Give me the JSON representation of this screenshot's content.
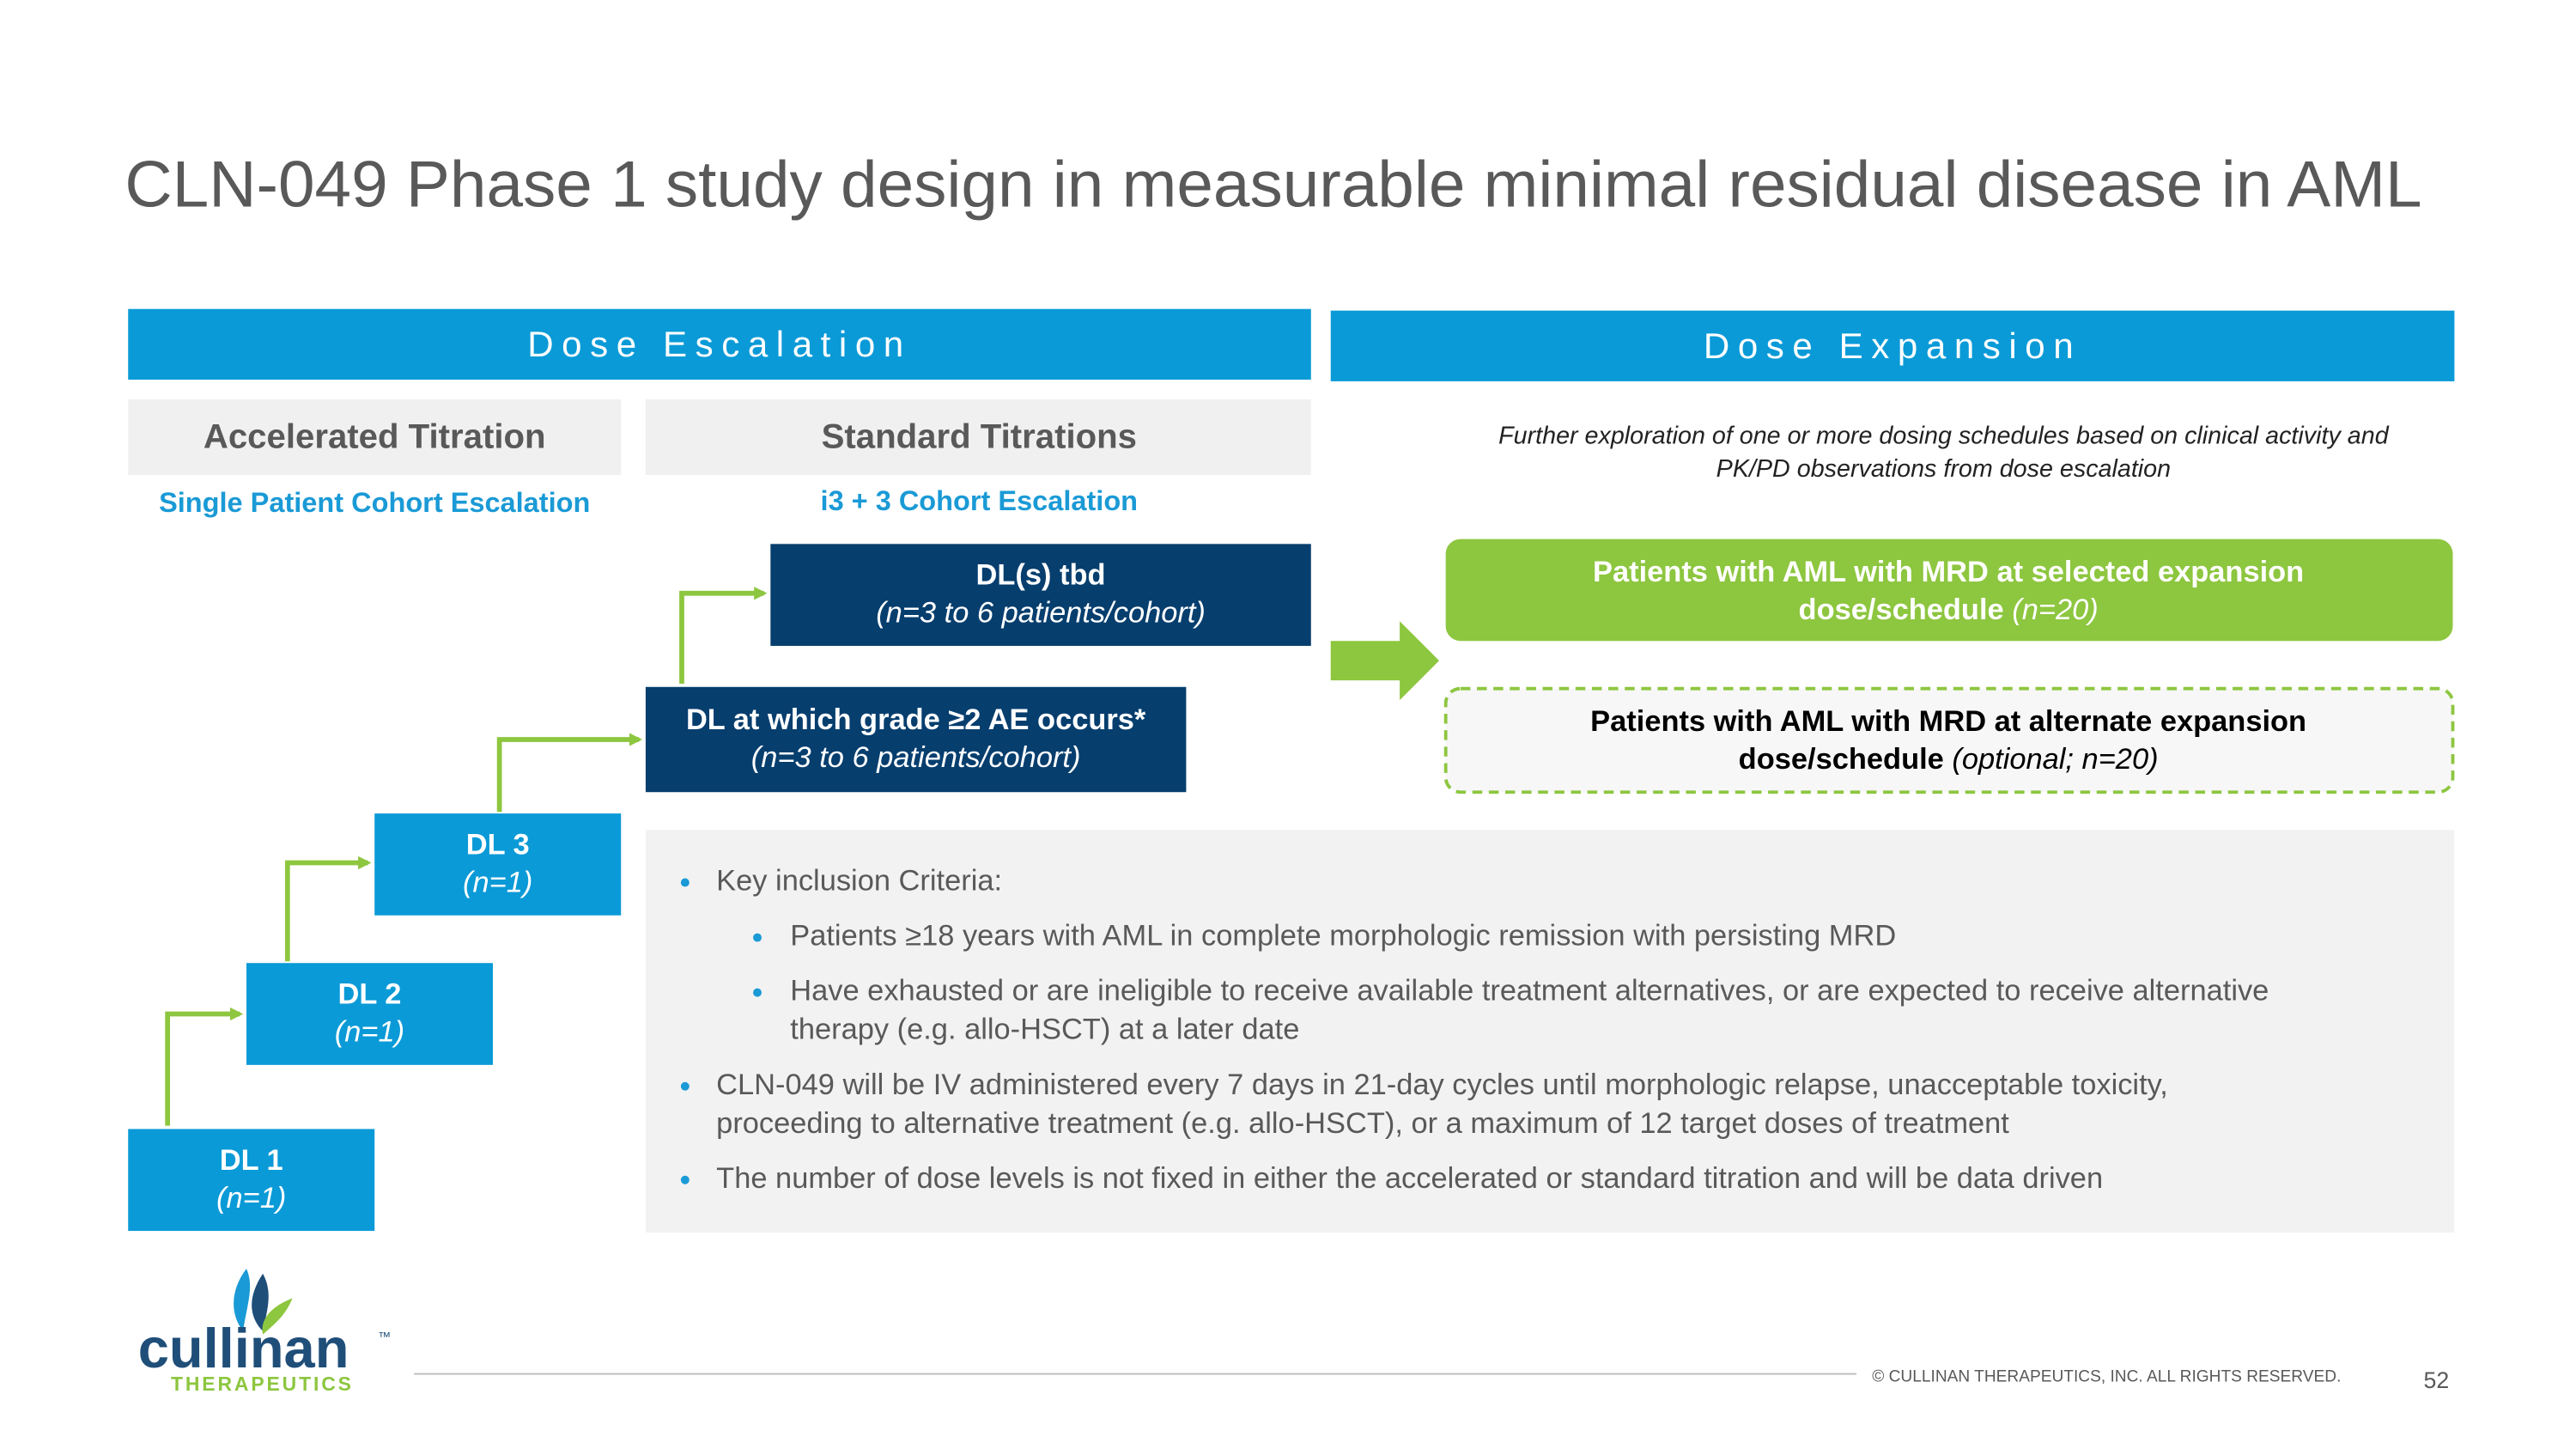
{
  "title": "CLN-049 Phase 1 study design in measurable minimal residual disease in AML",
  "escalation": {
    "header": "Dose Escalation",
    "accelerated": {
      "title": "Accelerated Titration",
      "subtitle": "Single Patient Cohort Escalation"
    },
    "standard": {
      "title": "Standard Titrations",
      "subtitle": "i3 + 3 Cohort Escalation"
    },
    "levels": [
      {
        "label": "DL 1",
        "n": "(n=1)"
      },
      {
        "label": "DL 2",
        "n": "(n=1)"
      },
      {
        "label": "DL 3",
        "n": "(n=1)"
      },
      {
        "label": "DL at which grade ≥2 AE occurs*",
        "n": "(n=3 to 6 patients/cohort)"
      },
      {
        "label": "DL(s) tbd",
        "n": "(n=3 to 6 patients/cohort)"
      }
    ]
  },
  "expansion": {
    "header": "Dose Expansion",
    "description": [
      "Further exploration of one or more dosing schedules based on clinical activity and",
      "PK/PD observations from dose escalation"
    ],
    "cohorts": [
      {
        "lines": [
          "Patients with AML with MRD at selected expansion",
          "dose/schedule"
        ],
        "n": "(n=20)"
      },
      {
        "lines": [
          "Patients with AML with MRD at alternate expansion",
          "dose/schedule"
        ],
        "n": "(optional; n=20)"
      }
    ]
  },
  "criteria": [
    {
      "lines": [
        "Key inclusion Criteria:"
      ],
      "sub": [
        {
          "lines": [
            "Patients ≥18 years with AML in complete morphologic remission with persisting MRD"
          ]
        },
        {
          "lines": [
            "Have exhausted or are ineligible to receive available treatment alternatives, or are expected to receive alternative",
            "therapy (e.g. allo-HSCT) at a later date"
          ]
        }
      ]
    },
    {
      "lines": [
        "CLN-049 will be IV administered every 7 days in 21-day cycles until morphologic relapse, unacceptable toxicity,",
        "proceeding to alternative treatment (e.g. allo-HSCT), or a maximum of 12 target doses of treatment"
      ]
    },
    {
      "lines": [
        "The number of dose levels is not fixed in either the accelerated or standard titration and will be data driven"
      ]
    }
  ],
  "logo": {
    "name": "cullinan",
    "tm": "™",
    "sub": "THERAPEUTICS"
  },
  "footer": {
    "copyright": "© CULLINAN THERAPEUTICS, INC. ALL RIGHTS RESERVED.",
    "page": "52"
  }
}
